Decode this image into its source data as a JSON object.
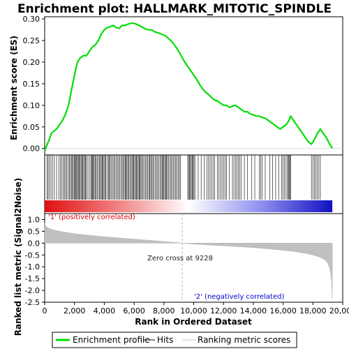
{
  "chart_data": {
    "type": "line",
    "title": "Enrichment plot: HALLMARK_MITOTIC_SPINDLE",
    "top_panel": {
      "ylabel": "Enrichment score (ES)",
      "ylim": [
        -0.015,
        0.305
      ],
      "yticks": [
        "0.00",
        "0.05",
        "0.10",
        "0.15",
        "0.20",
        "0.25",
        "0.30"
      ],
      "ytick_values": [
        0.0,
        0.05,
        0.1,
        0.15,
        0.2,
        0.25,
        0.3
      ],
      "series": [
        {
          "name": "Enrichment profile",
          "color": "#00dd00",
          "x": [
            0,
            150,
            300,
            450,
            600,
            800,
            1000,
            1200,
            1400,
            1600,
            1800,
            2000,
            2200,
            2400,
            2600,
            2800,
            3000,
            3200,
            3400,
            3600,
            3800,
            4000,
            4200,
            4400,
            4600,
            4800,
            5000,
            5200,
            5400,
            5600,
            5800,
            6000,
            6200,
            6400,
            6600,
            6800,
            7000,
            7200,
            7400,
            7600,
            7800,
            8000,
            8200,
            8400,
            8600,
            8800,
            9000,
            9200,
            9400,
            9600,
            9800,
            10000,
            10200,
            10400,
            10600,
            10800,
            11000,
            11200,
            11400,
            11600,
            11800,
            12000,
            12200,
            12400,
            12600,
            12800,
            13000,
            13200,
            13400,
            13600,
            13800,
            14000,
            14200,
            14400,
            14600,
            14800,
            15000,
            15200,
            15400,
            15600,
            15800,
            16000,
            16200,
            16400,
            16500,
            16700,
            16900,
            17100,
            17300,
            17500,
            17700,
            17900,
            18100,
            18300,
            18500,
            18700,
            18900,
            19100,
            19300
          ],
          "y": [
            -0.005,
            0.008,
            0.02,
            0.035,
            0.04,
            0.045,
            0.055,
            0.065,
            0.08,
            0.1,
            0.135,
            0.17,
            0.2,
            0.21,
            0.215,
            0.215,
            0.225,
            0.235,
            0.24,
            0.25,
            0.265,
            0.275,
            0.28,
            0.282,
            0.285,
            0.28,
            0.278,
            0.285,
            0.285,
            0.288,
            0.29,
            0.29,
            0.287,
            0.284,
            0.28,
            0.276,
            0.275,
            0.274,
            0.27,
            0.268,
            0.265,
            0.263,
            0.258,
            0.252,
            0.245,
            0.235,
            0.225,
            0.212,
            0.2,
            0.19,
            0.18,
            0.17,
            0.16,
            0.148,
            0.138,
            0.13,
            0.125,
            0.118,
            0.112,
            0.11,
            0.105,
            0.1,
            0.1,
            0.095,
            0.098,
            0.1,
            0.095,
            0.09,
            0.085,
            0.085,
            0.08,
            0.078,
            0.075,
            0.075,
            0.072,
            0.07,
            0.065,
            0.06,
            0.055,
            0.05,
            0.045,
            0.05,
            0.055,
            0.065,
            0.075,
            0.065,
            0.055,
            0.045,
            0.035,
            0.025,
            0.015,
            0.01,
            0.02,
            0.035,
            0.045,
            0.035,
            0.025,
            0.012,
            0.0
          ]
        }
      ]
    },
    "middle_panel": {
      "name": "Hits",
      "hit_positions": [
        150,
        230,
        320,
        420,
        520,
        650,
        800,
        950,
        1050,
        1150,
        1250,
        1320,
        1400,
        1480,
        1560,
        1650,
        1720,
        1800,
        1860,
        1920,
        1980,
        2040,
        2100,
        2150,
        2200,
        2260,
        2320,
        2380,
        2440,
        2500,
        2560,
        2620,
        2680,
        2740,
        2800,
        2900,
        3000,
        3100,
        3150,
        3200,
        3260,
        3320,
        3380,
        3440,
        3520,
        3600,
        3680,
        3740,
        3800,
        3860,
        3920,
        3980,
        4040,
        4100,
        4200,
        4280,
        4340,
        4400,
        4480,
        4560,
        4640,
        4720,
        4800,
        4880,
        4960,
        5040,
        5120,
        5200,
        5280,
        5340,
        5400,
        5460,
        5520,
        5580,
        5640,
        5720,
        5800,
        5860,
        5920,
        5980,
        6040,
        6100,
        6160,
        6220,
        6280,
        6340,
        6400,
        6460,
        6520,
        6600,
        6680,
        6760,
        6840,
        6920,
        7000,
        7060,
        7120,
        7180,
        7260,
        7340,
        7420,
        7500,
        7580,
        7660,
        7740,
        7820,
        7880,
        7940,
        8000,
        8060,
        8120,
        8180,
        8240,
        8320,
        8400,
        8480,
        8560,
        8640,
        8720,
        8800,
        8880,
        8960,
        9040,
        9120,
        9600,
        9660,
        9720,
        9780,
        9840,
        9900,
        9960,
        10020,
        10080,
        10300,
        10500,
        10700,
        10900,
        11000,
        11100,
        11200,
        11300,
        11400,
        11600,
        11700,
        11800,
        11900,
        12000,
        12100,
        12200,
        12400,
        12600,
        12700,
        12800,
        12900,
        13000,
        13100,
        13200,
        13400,
        13600,
        13900,
        14100,
        14400,
        14500,
        14600,
        14800,
        15100,
        15300,
        15500,
        15700,
        15900,
        16000,
        16100,
        16200,
        16300,
        16350,
        16400,
        16450,
        16500,
        17900,
        18000,
        18100,
        18200,
        18300,
        18400,
        18500
      ],
      "gradient_stops": [
        "#e01010",
        "#f08080",
        "#ffffff",
        "#9090f0",
        "#1010c0"
      ]
    },
    "bottom_panel": {
      "ylabel": "Ranked list metric (Signal2Noise)",
      "ylim": [
        -2.5,
        1.25
      ],
      "yticks": [
        "1.0",
        "0.5",
        "0.0",
        "-0.5",
        "-1.0",
        "-1.5",
        "-2.0",
        "-2.5"
      ],
      "ytick_values": [
        1.0,
        0.5,
        0.0,
        -0.5,
        -1.0,
        -1.5,
        -2.0,
        -2.5
      ],
      "metric_curve": {
        "x": [
          0,
          50,
          150,
          300,
          500,
          800,
          1200,
          1600,
          2000,
          3000,
          4000,
          5000,
          6000,
          7000,
          8000,
          9000,
          9228,
          10000,
          11000,
          12000,
          13000,
          14000,
          15000,
          16000,
          16800,
          17500,
          18000,
          18400,
          18800,
          19000,
          19150,
          19250,
          19300
        ],
        "y": [
          0.85,
          0.75,
          0.68,
          0.62,
          0.58,
          0.53,
          0.48,
          0.44,
          0.4,
          0.33,
          0.27,
          0.22,
          0.17,
          0.12,
          0.07,
          0.02,
          0.0,
          -0.04,
          -0.08,
          -0.11,
          -0.15,
          -0.19,
          -0.24,
          -0.3,
          -0.36,
          -0.43,
          -0.5,
          -0.58,
          -0.7,
          -0.85,
          -1.1,
          -1.6,
          -2.35
        ]
      },
      "zero_cross_label": "Zero cross at 9228",
      "zero_cross_rank": 9228,
      "positive_label": "'1' (positively correlated)",
      "negative_label": "'2' (negatively correlated)",
      "positive_color": "#dd0000",
      "negative_color": "#0000cc"
    },
    "xlabel": "Rank in Ordered Dataset",
    "xlim": [
      0,
      20000
    ],
    "xticks": [
      "0",
      "2,000",
      "4,000",
      "6,000",
      "8,000",
      "10,000",
      "12,000",
      "14,000",
      "16,000",
      "18,000",
      "20,000"
    ],
    "xtick_values": [
      0,
      2000,
      4000,
      6000,
      8000,
      10000,
      12000,
      14000,
      16000,
      18000,
      20000
    ],
    "max_rank": 19300,
    "legend": {
      "items": [
        {
          "label": "Enrichment profile",
          "color": "#00dd00"
        },
        {
          "label": "Hits",
          "color": "#000000"
        },
        {
          "label": "Ranking metric scores",
          "color": "#c0c0c0"
        }
      ]
    }
  }
}
